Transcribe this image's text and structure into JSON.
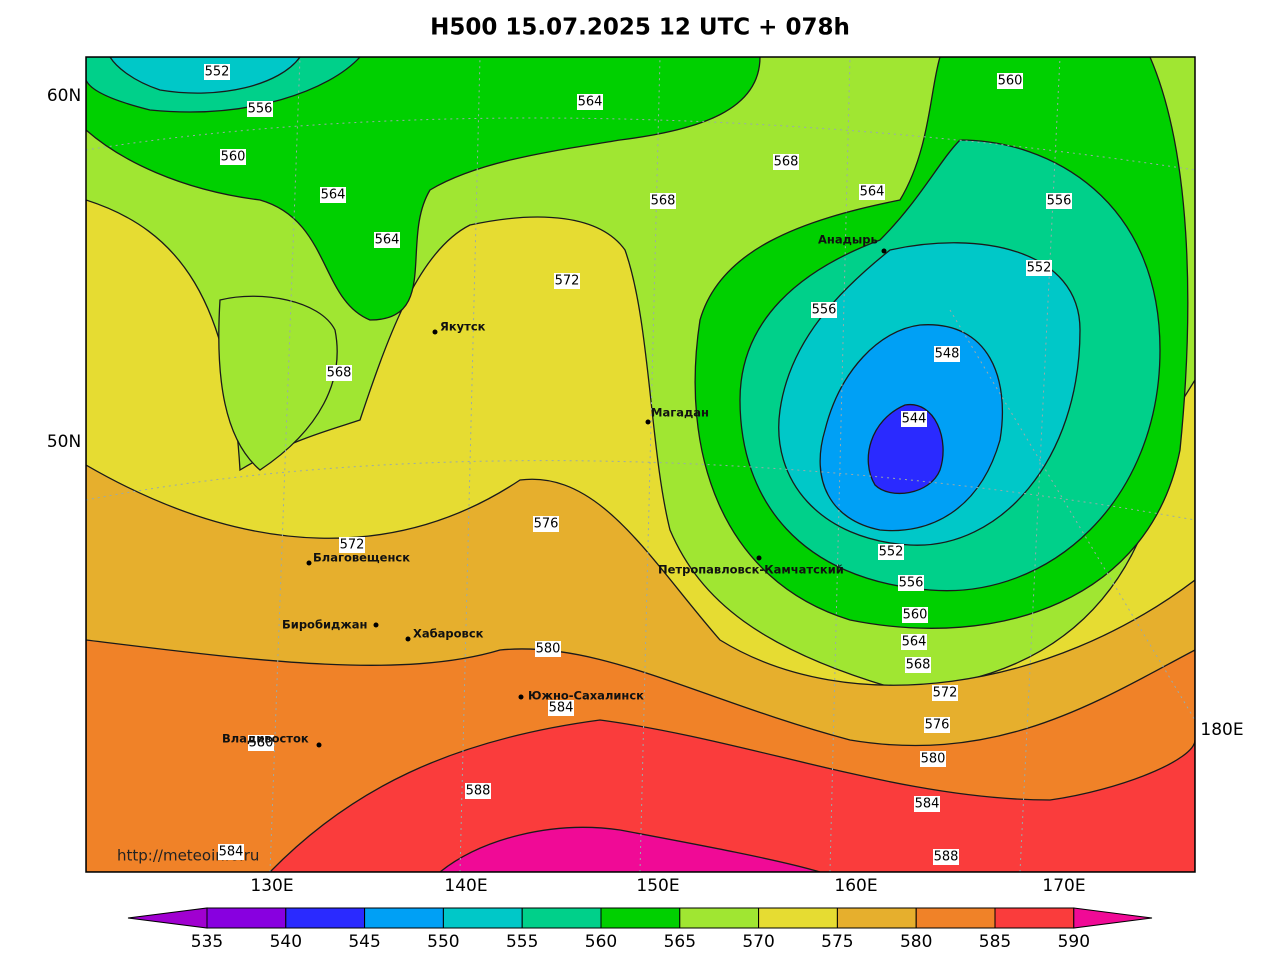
{
  "title": "H500  15.07.2025 12 UTC + 078h",
  "lat_labels": [
    "60N",
    "50N"
  ],
  "lon_labels": [
    "130E",
    "140E",
    "150E",
    "160E",
    "170E",
    "180E"
  ],
  "cities": [
    "Якутск",
    "Магадан",
    "Анадырь",
    "Благовещенск",
    "Биробиджан",
    "Хабаровск",
    "Петропавловск-Камчатский",
    "Южно-Сахалинск",
    "Владивосток"
  ],
  "contour_labels": [
    552,
    556,
    560,
    564,
    564,
    568,
    564,
    568,
    572,
    572,
    576,
    580,
    584,
    580,
    588,
    584,
    560,
    568,
    564,
    556,
    552,
    556,
    548,
    544,
    552,
    556,
    560,
    564,
    568,
    572,
    576,
    580,
    584,
    588
  ],
  "colorbar": {
    "ticks": [
      535,
      540,
      545,
      550,
      555,
      560,
      565,
      570,
      575,
      580,
      585,
      590
    ],
    "colors": [
      "#a000d0",
      "#8800e0",
      "#2a2aff",
      "#00a0f5",
      "#00c8c8",
      "#00d08a",
      "#00d000",
      "#a0e632",
      "#e6dc32",
      "#e6af2d",
      "#f08228",
      "#fa3c3c",
      "#f00a96"
    ]
  },
  "source": "http://meteoinfo.ru"
}
